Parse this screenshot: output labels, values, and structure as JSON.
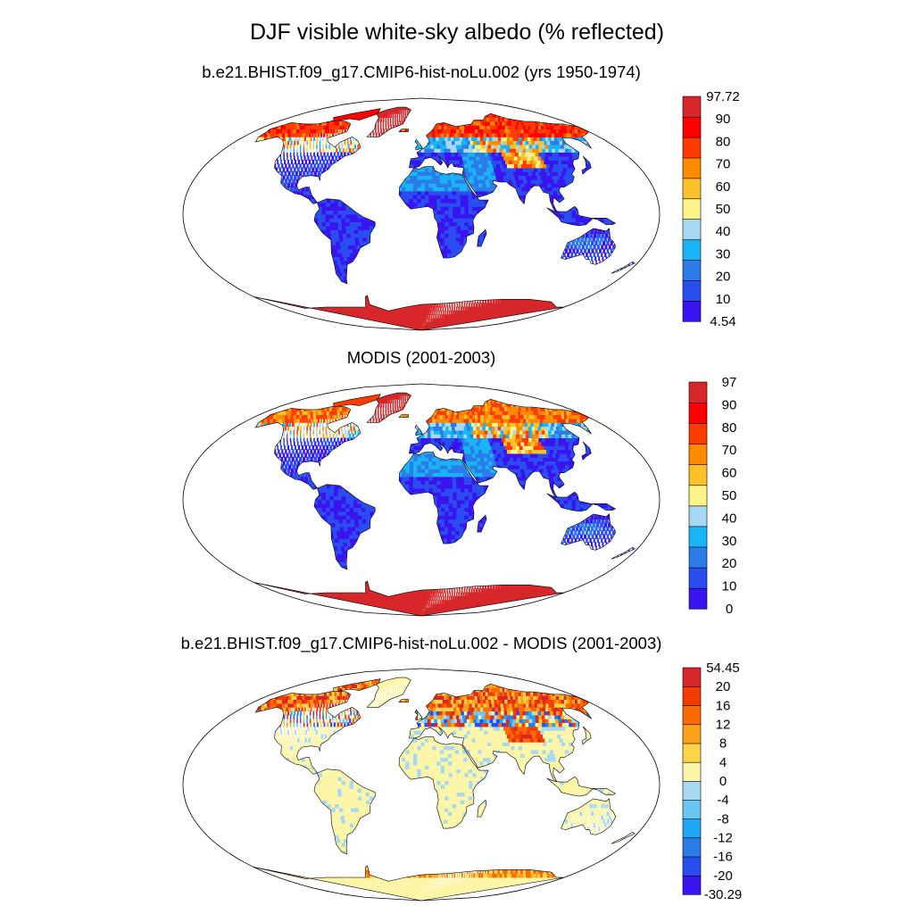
{
  "title": "DJF visible white-sky albedo (% reflected)",
  "panels": [
    {
      "title": "b.e21.BHIST.f09_g17.CMIP6-hist-noLu.002 (yrs 1950-1974)",
      "colorbar": {
        "labels": [
          "4.54",
          "10",
          "20",
          "30",
          "40",
          "50",
          "60",
          "70",
          "80",
          "90",
          "97.72"
        ],
        "colors": [
          "#3a14f0",
          "#2a4df0",
          "#2b7be8",
          "#19b4f5",
          "#a6d8f4",
          "#fdf38a",
          "#fdc22a",
          "#fd8a00",
          "#ff3c00",
          "#ff0000",
          "#d7272a"
        ]
      },
      "layer": "cesm"
    },
    {
      "title": "MODIS (2001-2003)",
      "colorbar": {
        "labels": [
          "0",
          "10",
          "20",
          "30",
          "40",
          "50",
          "60",
          "70",
          "80",
          "90",
          "97"
        ],
        "colors": [
          "#3a14f0",
          "#2a4df0",
          "#2b7be8",
          "#19b4f5",
          "#a6d8f4",
          "#fdf38a",
          "#fdc22a",
          "#fd8a00",
          "#ff3c00",
          "#ff0000",
          "#d7272a"
        ]
      },
      "layer": "modis"
    },
    {
      "title": "b.e21.BHIST.f09_g17.CMIP6-hist-noLu.002 - MODIS (2001-2003)",
      "colorbar": {
        "labels": [
          "-30.29",
          "-20",
          "-16",
          "-12",
          "-8",
          "-4",
          "0",
          "4",
          "8",
          "12",
          "16",
          "20",
          "54.45"
        ],
        "colors": [
          "#3a14f0",
          "#2a4df0",
          "#2b7be8",
          "#1fa6f5",
          "#68c6f3",
          "#a8d9f2",
          "#fdf5a8",
          "#fdd348",
          "#fda21a",
          "#fd6a00",
          "#f23c00",
          "#d7272a"
        ]
      },
      "layer": "diff"
    }
  ]
}
